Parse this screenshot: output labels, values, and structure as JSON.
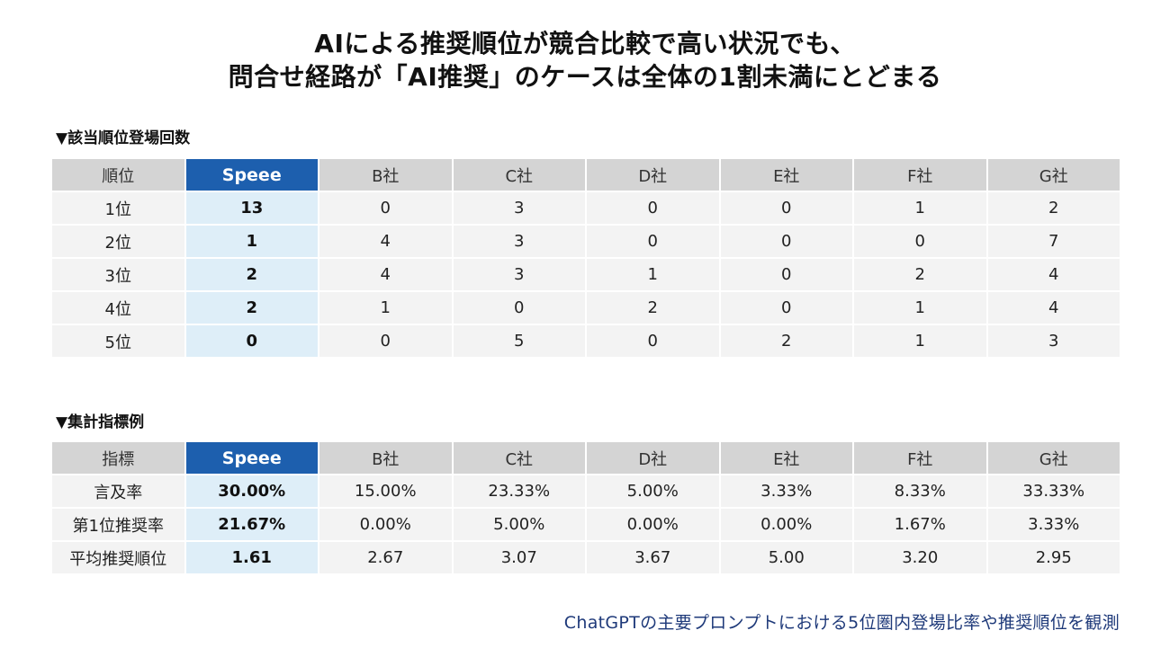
{
  "title": {
    "line1": "AIによる推奨順位が競合比較で高い状況でも、",
    "line2": "問合せ経路が「AI推奨」のケースは全体の1割未満にとどまる"
  },
  "rank_section": {
    "label": "▼該当順位登場回数",
    "headers": [
      "順位",
      "Speee",
      "B社",
      "C社",
      "D社",
      "E社",
      "F社",
      "G社"
    ],
    "rows": [
      [
        "1位",
        "13",
        "0",
        "3",
        "0",
        "0",
        "1",
        "2"
      ],
      [
        "2位",
        "1",
        "4",
        "3",
        "0",
        "0",
        "0",
        "7"
      ],
      [
        "3位",
        "2",
        "4",
        "3",
        "1",
        "0",
        "2",
        "4"
      ],
      [
        "4位",
        "2",
        "1",
        "0",
        "2",
        "0",
        "1",
        "4"
      ],
      [
        "5位",
        "0",
        "0",
        "5",
        "0",
        "2",
        "1",
        "3"
      ]
    ]
  },
  "metric_section": {
    "label": "▼集計指標例",
    "headers": [
      "指標",
      "Speee",
      "B社",
      "C社",
      "D社",
      "E社",
      "F社",
      "G社"
    ],
    "rows": [
      [
        "言及率",
        "30.00%",
        "15.00%",
        "23.33%",
        "5.00%",
        "3.33%",
        "8.33%",
        "33.33%"
      ],
      [
        "第1位推奨率",
        "21.67%",
        "0.00%",
        "5.00%",
        "0.00%",
        "0.00%",
        "1.67%",
        "3.33%"
      ],
      [
        "平均推奨順位",
        "1.61",
        "2.67",
        "3.07",
        "3.67",
        "5.00",
        "3.20",
        "2.95"
      ]
    ]
  },
  "footnote": "ChatGPTの主要プロンプトにおける5位圏内登場比率や推奨順位を観測",
  "colors": {
    "highlight_header": "#1d5fae",
    "highlight_cell": "#deeef8",
    "header": "#d4d4d4",
    "cell": "#f3f3f3",
    "footnote": "#1f3a7a"
  }
}
